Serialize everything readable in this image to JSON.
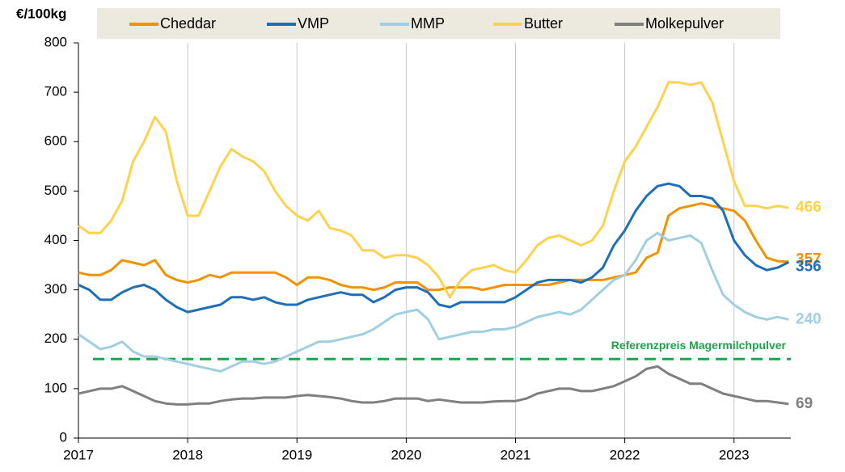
{
  "chart_data": {
    "type": "line",
    "y_label": "€/100kg",
    "x": [
      2017.0,
      2017.1,
      2017.2,
      2017.3,
      2017.4,
      2017.5,
      2017.6,
      2017.7,
      2017.8,
      2017.9,
      2018.0,
      2018.1,
      2018.2,
      2018.3,
      2018.4,
      2018.5,
      2018.6,
      2018.7,
      2018.8,
      2018.9,
      2019.0,
      2019.1,
      2019.2,
      2019.3,
      2019.4,
      2019.5,
      2019.6,
      2019.7,
      2019.8,
      2019.9,
      2020.0,
      2020.1,
      2020.2,
      2020.3,
      2020.4,
      2020.5,
      2020.6,
      2020.7,
      2020.8,
      2020.9,
      2021.0,
      2021.1,
      2021.2,
      2021.3,
      2021.4,
      2021.5,
      2021.6,
      2021.7,
      2021.8,
      2021.9,
      2022.0,
      2022.1,
      2022.2,
      2022.3,
      2022.4,
      2022.5,
      2022.6,
      2022.7,
      2022.8,
      2022.9,
      2023.0,
      2023.1,
      2023.2,
      2023.3,
      2023.4,
      2023.5
    ],
    "series": [
      {
        "name": "Cheddar",
        "color": "#f39200",
        "values": [
          335,
          330,
          330,
          340,
          360,
          355,
          350,
          360,
          330,
          320,
          315,
          320,
          330,
          325,
          335,
          335,
          335,
          335,
          335,
          325,
          310,
          325,
          325,
          320,
          310,
          305,
          305,
          300,
          305,
          315,
          315,
          315,
          300,
          300,
          305,
          305,
          305,
          300,
          305,
          310,
          310,
          310,
          310,
          310,
          315,
          320,
          320,
          320,
          320,
          325,
          330,
          335,
          365,
          375,
          450,
          465,
          470,
          475,
          470,
          465,
          460,
          440,
          400,
          365,
          358,
          357
        ]
      },
      {
        "name": "VMP",
        "color": "#1f6fb8",
        "values": [
          310,
          300,
          280,
          280,
          295,
          305,
          310,
          300,
          280,
          265,
          255,
          260,
          265,
          270,
          285,
          285,
          280,
          285,
          275,
          270,
          270,
          280,
          285,
          290,
          295,
          290,
          290,
          275,
          285,
          300,
          305,
          305,
          295,
          270,
          265,
          275,
          275,
          275,
          275,
          275,
          285,
          300,
          315,
          320,
          320,
          320,
          315,
          325,
          345,
          390,
          420,
          460,
          490,
          510,
          515,
          510,
          490,
          490,
          485,
          460,
          400,
          370,
          350,
          340,
          345,
          356
        ]
      },
      {
        "name": "MMP",
        "color": "#9fcfe0",
        "values": [
          210,
          195,
          180,
          185,
          195,
          175,
          165,
          165,
          160,
          155,
          150,
          145,
          140,
          135,
          145,
          155,
          155,
          150,
          155,
          165,
          175,
          185,
          195,
          195,
          200,
          205,
          210,
          220,
          235,
          250,
          255,
          260,
          240,
          200,
          205,
          210,
          215,
          215,
          220,
          220,
          225,
          235,
          245,
          250,
          255,
          250,
          260,
          280,
          300,
          320,
          330,
          360,
          400,
          415,
          400,
          405,
          410,
          395,
          340,
          290,
          270,
          255,
          245,
          240,
          245,
          240
        ]
      },
      {
        "name": "Butter",
        "color": "#ffd24d",
        "values": [
          430,
          415,
          415,
          440,
          480,
          560,
          600,
          650,
          620,
          520,
          450,
          450,
          500,
          550,
          585,
          570,
          560,
          540,
          500,
          470,
          450,
          440,
          460,
          425,
          420,
          410,
          380,
          380,
          365,
          370,
          370,
          365,
          350,
          325,
          285,
          320,
          340,
          345,
          350,
          340,
          335,
          360,
          390,
          405,
          410,
          400,
          390,
          400,
          430,
          500,
          560,
          590,
          630,
          670,
          720,
          720,
          715,
          720,
          680,
          600,
          520,
          470,
          470,
          465,
          470,
          466
        ]
      },
      {
        "name": "Molkepulver",
        "color": "#7f7f7f",
        "values": [
          90,
          95,
          100,
          100,
          105,
          95,
          85,
          75,
          70,
          68,
          68,
          70,
          70,
          75,
          78,
          80,
          80,
          82,
          82,
          82,
          85,
          87,
          85,
          83,
          80,
          75,
          72,
          72,
          75,
          80,
          80,
          80,
          75,
          78,
          75,
          72,
          72,
          72,
          74,
          75,
          75,
          80,
          90,
          95,
          100,
          100,
          95,
          95,
          100,
          105,
          115,
          125,
          140,
          145,
          130,
          120,
          110,
          110,
          100,
          90,
          85,
          80,
          75,
          75,
          72,
          69
        ]
      }
    ],
    "reference_lines": [
      {
        "value": 160,
        "label": "Referenzpreis Magermilchpulver",
        "color": "#1aa64a"
      }
    ],
    "xlim": [
      2017,
      2023.52
    ],
    "xticks": [
      2017,
      2018,
      2019,
      2020,
      2021,
      2022,
      2023
    ],
    "ylim": [
      0,
      800
    ],
    "yticks": [
      0,
      100,
      200,
      300,
      400,
      500,
      600,
      700,
      800
    ],
    "grid": true,
    "legend": "top"
  }
}
